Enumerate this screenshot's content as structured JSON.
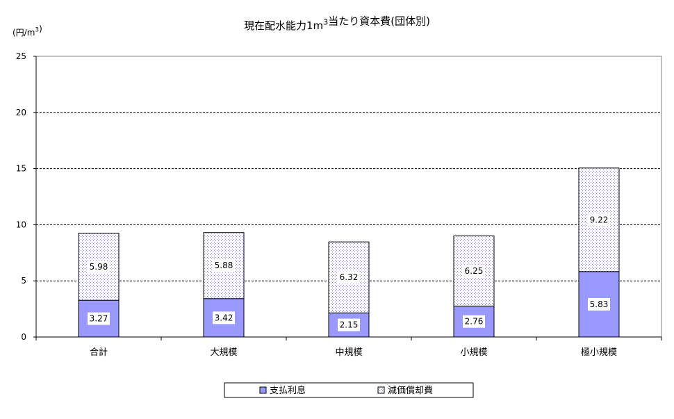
{
  "chart_data": {
    "type": "bar",
    "stacked": true,
    "title": "現在配水能力1m³当たり資本費(団体別)",
    "ylabel": "(円/m³)",
    "xlabel": "",
    "ylim": [
      0,
      25
    ],
    "yticks": [
      0,
      5,
      10,
      15,
      20,
      25
    ],
    "grid": "horizontal-dashed",
    "legend_position": "bottom",
    "categories": [
      "合計",
      "大規模",
      "中規模",
      "小規模",
      "極小規模"
    ],
    "series": [
      {
        "name": "支払利息",
        "values": [
          3.27,
          3.42,
          2.15,
          2.76,
          5.83
        ],
        "color": "#9999ff",
        "pattern": "solid"
      },
      {
        "name": "減価償却費",
        "values": [
          5.98,
          5.88,
          6.32,
          6.25,
          9.22
        ],
        "color": "#9999ff",
        "pattern": "dotted"
      }
    ],
    "data_labels": [
      [
        "3.27",
        "3.42",
        "2.15",
        "2.76",
        "5.83"
      ],
      [
        "5.98",
        "5.88",
        "6.32",
        "6.25",
        "9.22"
      ]
    ]
  }
}
